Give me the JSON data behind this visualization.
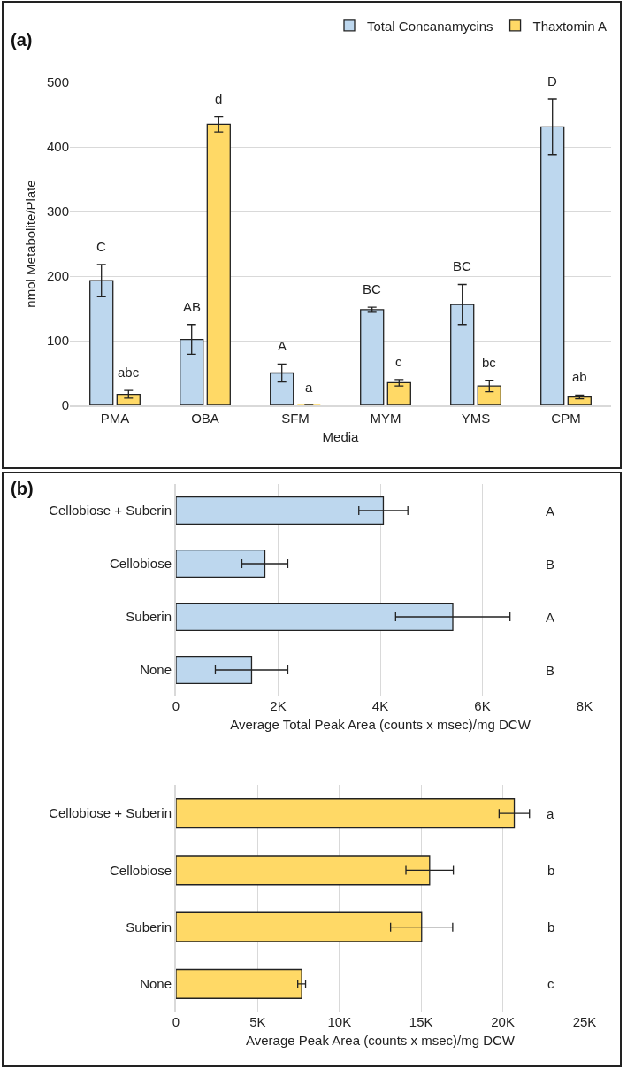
{
  "chart_data": [
    {
      "type": "bar",
      "title": "(a)",
      "xlabel": "Media",
      "ylabel": "nmol Metabolite/Plate",
      "categories": [
        "PMA",
        "OBA",
        "SFM",
        "MYM",
        "YMS",
        "CPM"
      ],
      "series": [
        {
          "name": "Total Concanamycins",
          "color": "#bdd7ee",
          "values": [
            193,
            102,
            50,
            148,
            156,
            431
          ],
          "errors": [
            25,
            23,
            14,
            4,
            31,
            43
          ]
        },
        {
          "name": "Thaxtomin A",
          "color": "#ffd966",
          "values": [
            17,
            435,
            0,
            35,
            30,
            13
          ],
          "errors": [
            6,
            12,
            null,
            5,
            9,
            3
          ]
        }
      ],
      "ylim": [
        0,
        500
      ],
      "yticks": [
        0,
        100,
        200,
        300,
        400,
        500
      ],
      "grid": "y",
      "legend": "top right",
      "annotations": [
        "C",
        "abc",
        "AB",
        "d",
        "A",
        "a",
        "BC",
        "c",
        "BC",
        "bc",
        "D",
        "ab"
      ]
    },
    {
      "type": "bar",
      "title": "(b)",
      "orientation": "horizontal",
      "xlabel": "Average Total Peak Area (counts x msec)/mg DCW",
      "categories": [
        "Cellobiose + Suberin",
        "Cellobiose",
        "Suberin",
        "None"
      ],
      "series": [
        {
          "color": "#bdd7ee",
          "values": [
            4060,
            1740,
            5420,
            1480
          ],
          "errors": [
            480,
            450,
            1120,
            710
          ]
        }
      ],
      "xlim": [
        0,
        8000
      ],
      "xticks": [
        0,
        {
          "value": 2000,
          "label": "2K"
        },
        {
          "value": 4000,
          "label": "4K"
        },
        {
          "value": 6000,
          "label": "6K"
        },
        {
          "value": 8000,
          "label": "8K"
        }
      ],
      "grid": "x",
      "legend": false,
      "annotations": [
        "A",
        "B",
        "A",
        "B"
      ]
    },
    {
      "type": "bar",
      "orientation": "horizontal",
      "xlabel": "Average Peak Area (counts x msec)/mg DCW",
      "categories": [
        "Cellobiose + Suberin",
        "Cellobiose",
        "Suberin",
        "None"
      ],
      "series": [
        {
          "color": "#ffd966",
          "values": [
            20700,
            15520,
            15030,
            7690
          ],
          "errors": [
            930,
            1450,
            1900,
            240
          ]
        }
      ],
      "xlim": [
        0,
        25000
      ],
      "xticks": [
        0,
        {
          "value": 5000,
          "label": "5K"
        },
        {
          "value": 10000,
          "label": "10K"
        },
        {
          "value": 15000,
          "label": "15K"
        },
        {
          "value": 20000,
          "label": "20K"
        },
        {
          "value": 25000,
          "label": "25K"
        }
      ],
      "grid": "x",
      "legend": false,
      "annotations": [
        "a",
        "b",
        "b",
        "c"
      ]
    }
  ]
}
